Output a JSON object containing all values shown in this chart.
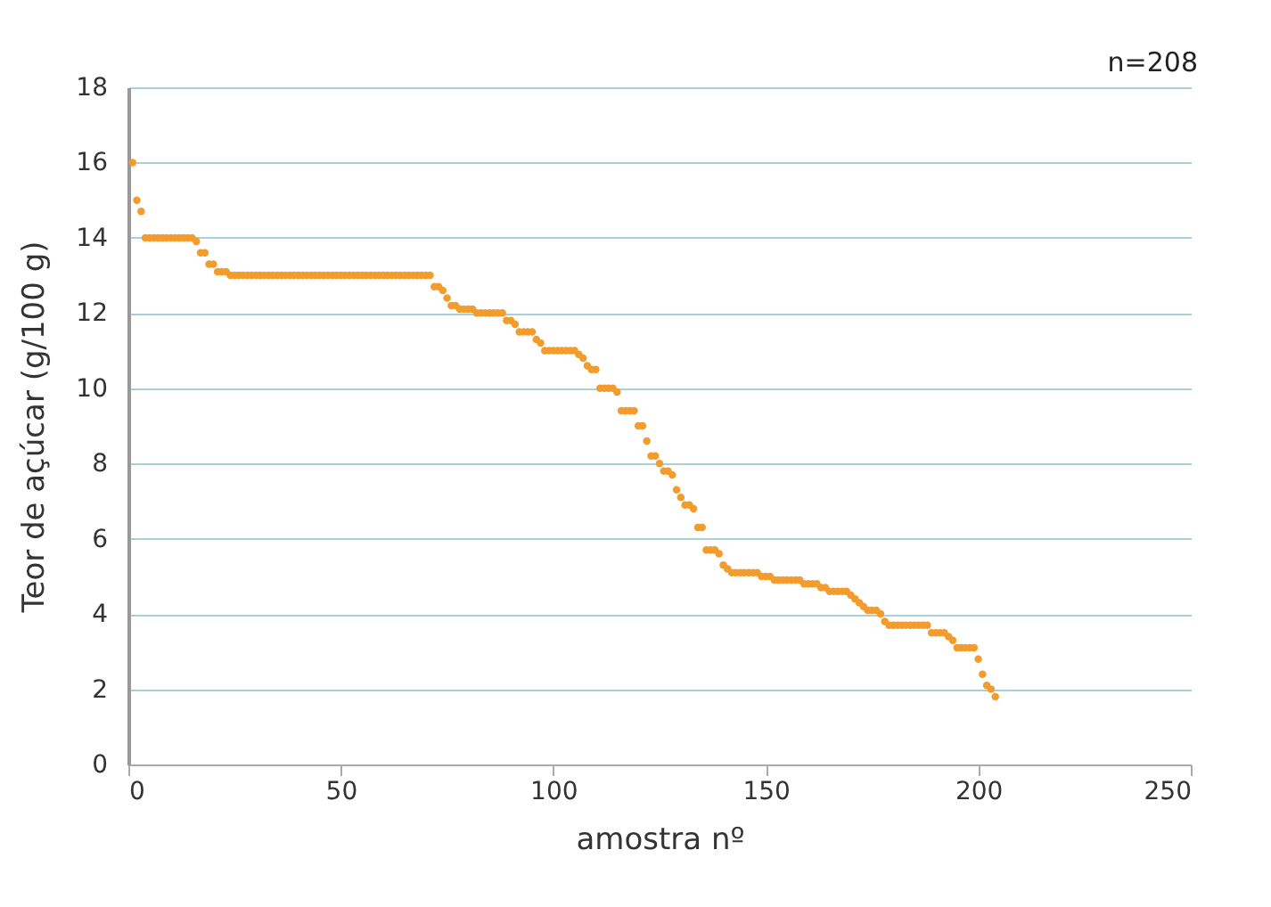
{
  "chart_data": {
    "type": "scatter",
    "xlabel": "amostra nº",
    "ylabel": "Teor de açúcar (g/100 g)",
    "annotations": [
      "n=208"
    ],
    "xlim": [
      0,
      250
    ],
    "xticks": [
      0,
      50,
      100,
      150,
      200,
      250
    ],
    "ylim": [
      0,
      18
    ],
    "yticks": [
      0,
      2,
      4,
      6,
      8,
      10,
      12,
      14,
      16,
      18
    ],
    "grid": "y",
    "marker": "circle",
    "legend": false,
    "series": [
      {
        "color": "#f39c2e",
        "x": [
          1,
          2,
          3,
          4,
          5,
          6,
          7,
          8,
          9,
          10,
          11,
          12,
          13,
          14,
          15,
          16,
          17,
          18,
          19,
          20,
          21,
          22,
          23,
          24,
          25,
          26,
          27,
          28,
          29,
          30,
          31,
          32,
          33,
          34,
          35,
          36,
          37,
          38,
          39,
          40,
          41,
          42,
          43,
          44,
          45,
          46,
          47,
          48,
          49,
          50,
          51,
          52,
          53,
          54,
          55,
          56,
          57,
          58,
          59,
          60,
          61,
          62,
          63,
          64,
          65,
          66,
          67,
          68,
          69,
          70,
          71,
          72,
          73,
          74,
          75,
          76,
          77,
          78,
          79,
          80,
          81,
          82,
          83,
          84,
          85,
          86,
          87,
          88,
          89,
          90,
          91,
          92,
          93,
          94,
          95,
          96,
          97,
          98,
          99,
          100,
          101,
          102,
          103,
          104,
          105,
          106,
          107,
          108,
          109,
          110,
          111,
          112,
          113,
          114,
          115,
          116,
          117,
          118,
          119,
          120,
          121,
          122,
          123,
          124,
          125,
          126,
          127,
          128,
          129,
          130,
          131,
          132,
          133,
          134,
          135,
          136,
          137,
          138,
          139,
          140,
          141,
          142,
          143,
          144,
          145,
          146,
          147,
          148,
          149,
          150,
          151,
          152,
          153,
          154,
          155,
          156,
          157,
          158,
          159,
          160,
          161,
          162,
          163,
          164,
          165,
          166,
          167,
          168,
          169,
          170,
          171,
          172,
          173,
          174,
          175,
          176,
          177,
          178,
          179,
          180,
          181,
          182,
          183,
          184,
          185,
          186,
          187,
          188,
          189,
          190,
          191,
          192,
          193,
          194,
          195,
          196,
          197,
          198,
          199,
          200,
          201,
          202,
          203,
          204
        ],
        "values": [
          16,
          15,
          14.7,
          14,
          14,
          14,
          14,
          14,
          14,
          14,
          14,
          14,
          14,
          14,
          14,
          13.9,
          13.6,
          13.6,
          13.3,
          13.3,
          13.1,
          13.1,
          13.1,
          13,
          13,
          13,
          13,
          13,
          13,
          13,
          13,
          13,
          13,
          13,
          13,
          13,
          13,
          13,
          13,
          13,
          13,
          13,
          13,
          13,
          13,
          13,
          13,
          13,
          13,
          13,
          13,
          13,
          13,
          13,
          13,
          13,
          13,
          13,
          13,
          13,
          13,
          13,
          13,
          13,
          13,
          13,
          13,
          13,
          13,
          13,
          13,
          12.7,
          12.7,
          12.6,
          12.4,
          12.2,
          12.2,
          12.1,
          12.1,
          12.1,
          12.1,
          12,
          12,
          12,
          12,
          12,
          12,
          12,
          11.8,
          11.8,
          11.7,
          11.5,
          11.5,
          11.5,
          11.5,
          11.3,
          11.2,
          11,
          11,
          11,
          11,
          11,
          11,
          11,
          11,
          10.9,
          10.8,
          10.6,
          10.5,
          10.5,
          10,
          10,
          10,
          10,
          9.9,
          9.4,
          9.4,
          9.4,
          9.4,
          9,
          9,
          8.6,
          8.2,
          8.2,
          8,
          7.8,
          7.8,
          7.7,
          7.3,
          7.1,
          6.9,
          6.9,
          6.8,
          6.3,
          6.3,
          5.7,
          5.7,
          5.7,
          5.6,
          5.3,
          5.2,
          5.1,
          5.1,
          5.1,
          5.1,
          5.1,
          5.1,
          5.1,
          5,
          5,
          5,
          4.9,
          4.9,
          4.9,
          4.9,
          4.9,
          4.9,
          4.9,
          4.8,
          4.8,
          4.8,
          4.8,
          4.7,
          4.7,
          4.6,
          4.6,
          4.6,
          4.6,
          4.6,
          4.5,
          4.4,
          4.3,
          4.2,
          4.1,
          4.1,
          4.1,
          4,
          3.8,
          3.7,
          3.7,
          3.7,
          3.7,
          3.7,
          3.7,
          3.7,
          3.7,
          3.7,
          3.7,
          3.5,
          3.5,
          3.5,
          3.5,
          3.4,
          3.3,
          3.1,
          3.1,
          3.1,
          3.1,
          3.1,
          2.8,
          2.4,
          2.1,
          2,
          1.8
        ]
      }
    ]
  }
}
